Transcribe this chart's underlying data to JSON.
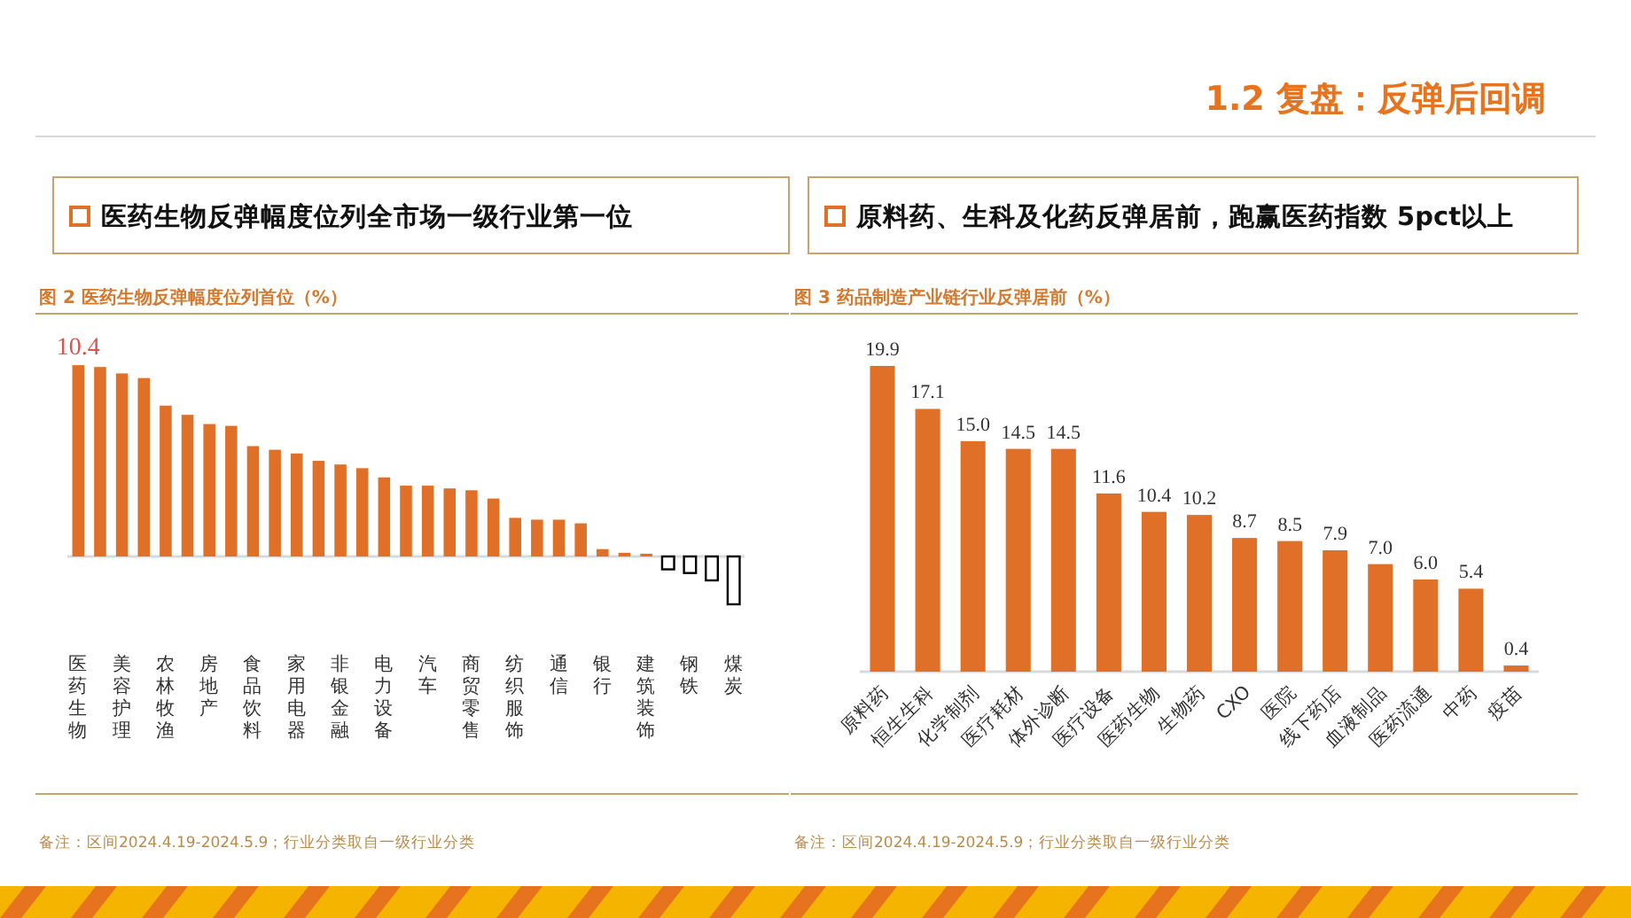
{
  "chart_data": [
    {
      "type": "other",
      "title": "1.2 复盘：反弹后回调"
    },
    {
      "type": "bar",
      "title": "医药生物反弹幅度位列全市场一级行业第一位",
      "subtitle": "图 2 医药生物反弹幅度位列首位（%）",
      "categories": [
        "医药生物",
        null,
        "美容护理",
        null,
        "农林牧渔",
        null,
        "房地产",
        null,
        "食品饮料",
        null,
        "家用电器",
        null,
        "非银金融",
        null,
        "电力设备",
        null,
        "汽车",
        null,
        "商贸零售",
        null,
        "纺织服饰",
        null,
        "通信",
        null,
        "银行",
        null,
        "建筑装饰",
        null,
        "钢铁",
        null,
        "煤炭"
      ],
      "values": [
        10.4,
        10.3,
        9.95,
        9.7,
        8.2,
        7.7,
        7.2,
        7.1,
        6.0,
        5.8,
        5.6,
        5.2,
        5.0,
        4.8,
        4.3,
        3.85,
        3.85,
        3.7,
        3.6,
        3.15,
        2.1,
        2.0,
        2.0,
        1.8,
        0.4,
        0.2,
        0.15,
        -0.7,
        -0.9,
        -1.3,
        -2.6
      ],
      "colors": [
        "#e07027",
        "#e07027",
        "#e07027",
        "#e07027",
        "#e07027",
        "#e07027",
        "#e07027",
        "#e07027",
        "#e07027",
        "#e07027",
        "#e07027",
        "#e07027",
        "#e07027",
        "#e07027",
        "#e07027",
        "#e07027",
        "#e07027",
        "#e07027",
        "#e07027",
        "#e07027",
        "#e07027",
        "#e07027",
        "#e07027",
        "#e07027",
        "#e07027",
        "#e07027",
        "#e07027",
        "#ffffff",
        "#ffffff",
        "#ffffff",
        "#ffffff"
      ],
      "value_labels": [
        "10.4",
        null,
        null,
        null,
        null,
        null,
        null,
        null,
        null,
        null,
        null,
        null,
        null,
        null,
        null,
        null,
        null,
        null,
        null,
        null,
        null,
        null,
        null,
        null,
        null,
        null,
        null,
        null,
        null,
        null,
        null
      ],
      "annotations": [
        "备注：区间2024.4.19-2024.5.9；行业分类取自一级行业分类"
      ]
    },
    {
      "type": "bar",
      "title": "原料药、生科及化药反弹居前，跑赢医药指数 5pct以上",
      "subtitle": "图 3 药品制造产业链行业反弹居前（%）",
      "categories": [
        "原料药",
        "恒生生科",
        "化学制剂",
        "医疗耗材",
        "体外诊断",
        "医疗设备",
        "医药生物",
        "生物药",
        "CXO",
        "医院",
        "线下药店",
        "血液制品",
        "医药流通",
        "中药",
        "疫苗"
      ],
      "values": [
        19.9,
        17.1,
        15.0,
        14.5,
        14.5,
        11.6,
        10.4,
        10.2,
        8.7,
        8.5,
        7.9,
        7.0,
        6.0,
        5.4,
        0.4
      ],
      "color": "#e07027",
      "value_labels": [
        "19.9",
        "17.1",
        "15.0",
        "14.5",
        "14.5",
        "11.6",
        "10.4",
        "10.2",
        "8.7",
        "8.5",
        "7.9",
        "7.0",
        "6.0",
        "5.4",
        "0.4"
      ],
      "annotations": [
        "备注：区间2024.4.19-2024.5.9；行业分类取自一级行业分类"
      ]
    }
  ]
}
